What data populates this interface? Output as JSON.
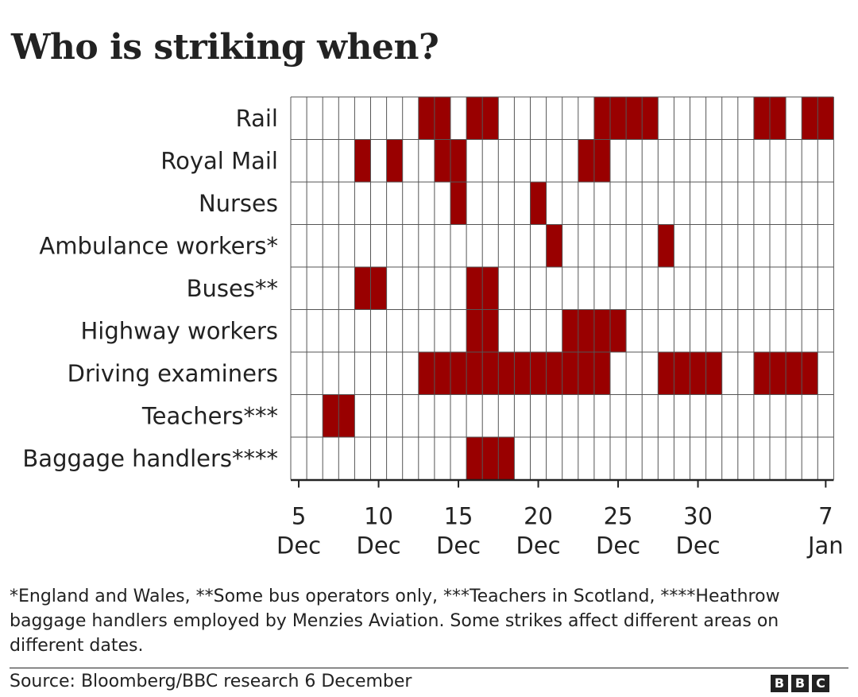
{
  "title": "Who is striking when?",
  "logo": {
    "letters": [
      "B",
      "B",
      "C"
    ]
  },
  "colors": {
    "strike": "#990000",
    "grid": "#555555",
    "cell_bg": "#ffffff",
    "text": "#222222"
  },
  "chart_data": {
    "type": "heatmap",
    "title": "Who is striking when?",
    "x_range": [
      "2022-12-05",
      "2023-01-07"
    ],
    "rows": [
      {
        "label": "Rail",
        "strike_dates": [
          "2022-12-13",
          "2022-12-14",
          "2022-12-16",
          "2022-12-17",
          "2022-12-24",
          "2022-12-25",
          "2022-12-26",
          "2022-12-27",
          "2023-01-03",
          "2023-01-04",
          "2023-01-06",
          "2023-01-07"
        ]
      },
      {
        "label": "Royal Mail",
        "strike_dates": [
          "2022-12-09",
          "2022-12-11",
          "2022-12-14",
          "2022-12-15",
          "2022-12-23",
          "2022-12-24"
        ]
      },
      {
        "label": "Nurses",
        "strike_dates": [
          "2022-12-15",
          "2022-12-20"
        ]
      },
      {
        "label": "Ambulance workers*",
        "strike_dates": [
          "2022-12-21",
          "2022-12-28"
        ]
      },
      {
        "label": "Buses**",
        "strike_dates": [
          "2022-12-09",
          "2022-12-10",
          "2022-12-16",
          "2022-12-17"
        ]
      },
      {
        "label": "Highway workers",
        "strike_dates": [
          "2022-12-16",
          "2022-12-17",
          "2022-12-22",
          "2022-12-23",
          "2022-12-24",
          "2022-12-25"
        ]
      },
      {
        "label": "Driving examiners",
        "strike_dates": [
          "2022-12-13",
          "2022-12-14",
          "2022-12-15",
          "2022-12-16",
          "2022-12-17",
          "2022-12-18",
          "2022-12-19",
          "2022-12-20",
          "2022-12-21",
          "2022-12-22",
          "2022-12-23",
          "2022-12-24",
          "2022-12-28",
          "2022-12-29",
          "2022-12-30",
          "2022-12-31",
          "2023-01-03",
          "2023-01-04",
          "2023-01-05",
          "2023-01-06"
        ]
      },
      {
        "label": "Teachers***",
        "strike_dates": [
          "2022-12-07",
          "2022-12-08"
        ]
      },
      {
        "label": "Baggage handlers****",
        "strike_dates": [
          "2022-12-16",
          "2022-12-17",
          "2022-12-18"
        ]
      }
    ],
    "x_ticks": [
      {
        "date": "2022-12-05",
        "day": "5",
        "month": "Dec"
      },
      {
        "date": "2022-12-10",
        "day": "10",
        "month": "Dec"
      },
      {
        "date": "2022-12-15",
        "day": "15",
        "month": "Dec"
      },
      {
        "date": "2022-12-20",
        "day": "20",
        "month": "Dec"
      },
      {
        "date": "2022-12-25",
        "day": "25",
        "month": "Dec"
      },
      {
        "date": "2022-12-30",
        "day": "30",
        "month": "Dec"
      },
      {
        "date": "2023-01-07",
        "day": "7",
        "month": "Jan"
      }
    ],
    "grid": true,
    "legend": "none"
  },
  "footnote": "*England and Wales, **Some bus operators only, ***Teachers in Scotland, ****Heathrow baggage handlers employed by Menzies Aviation. Some strikes affect different areas on different dates.",
  "source": "Source: Bloomberg/BBC research 6 December"
}
